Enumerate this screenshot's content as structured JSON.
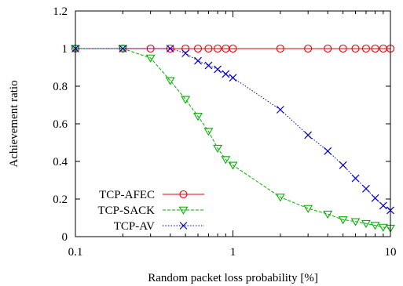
{
  "chart_data": {
    "type": "line",
    "xlabel": "Random packet loss probability [%]",
    "ylabel": "Achievement ratio",
    "x_scale": "log",
    "xlim": [
      0.1,
      10
    ],
    "ylim": [
      0,
      1.2
    ],
    "x_ticks": [
      {
        "value": 0.1,
        "label": "0.1"
      },
      {
        "value": 1,
        "label": "1"
      },
      {
        "value": 10,
        "label": "10"
      }
    ],
    "y_ticks": [
      {
        "value": 0,
        "label": "0"
      },
      {
        "value": 0.2,
        "label": "0.2"
      },
      {
        "value": 0.4,
        "label": "0.4"
      },
      {
        "value": 0.6,
        "label": "0.6"
      },
      {
        "value": 0.8,
        "label": "0.8"
      },
      {
        "value": 1,
        "label": "1"
      },
      {
        "value": 1.2,
        "label": "1.2"
      }
    ],
    "legend_position": "bottom-left",
    "series": [
      {
        "name": "TCP-AFEC",
        "color": "#e8000b",
        "marker": "circle",
        "line": "solid",
        "x": [
          0.1,
          0.2,
          0.3,
          0.4,
          0.5,
          0.6,
          0.7,
          0.8,
          0.9,
          1,
          2,
          3,
          4,
          5,
          6,
          7,
          8,
          9,
          10
        ],
        "y": [
          1,
          1,
          1,
          1,
          1,
          1,
          1,
          1,
          1,
          1,
          1,
          1,
          1,
          1,
          1,
          1,
          1,
          1,
          1
        ]
      },
      {
        "name": "TCP-SACK",
        "color": "#00b000",
        "marker": "triangle-down",
        "line": "dashed",
        "x": [
          0.1,
          0.2,
          0.3,
          0.4,
          0.5,
          0.6,
          0.7,
          0.8,
          0.9,
          1,
          2,
          3,
          4,
          5,
          6,
          7,
          8,
          9,
          10
        ],
        "y": [
          1,
          1,
          0.95,
          0.83,
          0.73,
          0.64,
          0.56,
          0.47,
          0.41,
          0.38,
          0.21,
          0.15,
          0.12,
          0.09,
          0.08,
          0.07,
          0.06,
          0.05,
          0.045
        ]
      },
      {
        "name": "TCP-AV",
        "color": "#0000cc",
        "marker": "cross",
        "line": "dotted",
        "x": [
          0.1,
          0.2,
          0.4,
          0.5,
          0.6,
          0.7,
          0.8,
          0.9,
          1,
          2,
          3,
          4,
          5,
          6,
          7,
          8,
          9,
          10
        ],
        "y": [
          1,
          1,
          1,
          0.975,
          0.935,
          0.91,
          0.89,
          0.865,
          0.845,
          0.675,
          0.54,
          0.455,
          0.38,
          0.31,
          0.255,
          0.205,
          0.165,
          0.14
        ]
      }
    ]
  }
}
